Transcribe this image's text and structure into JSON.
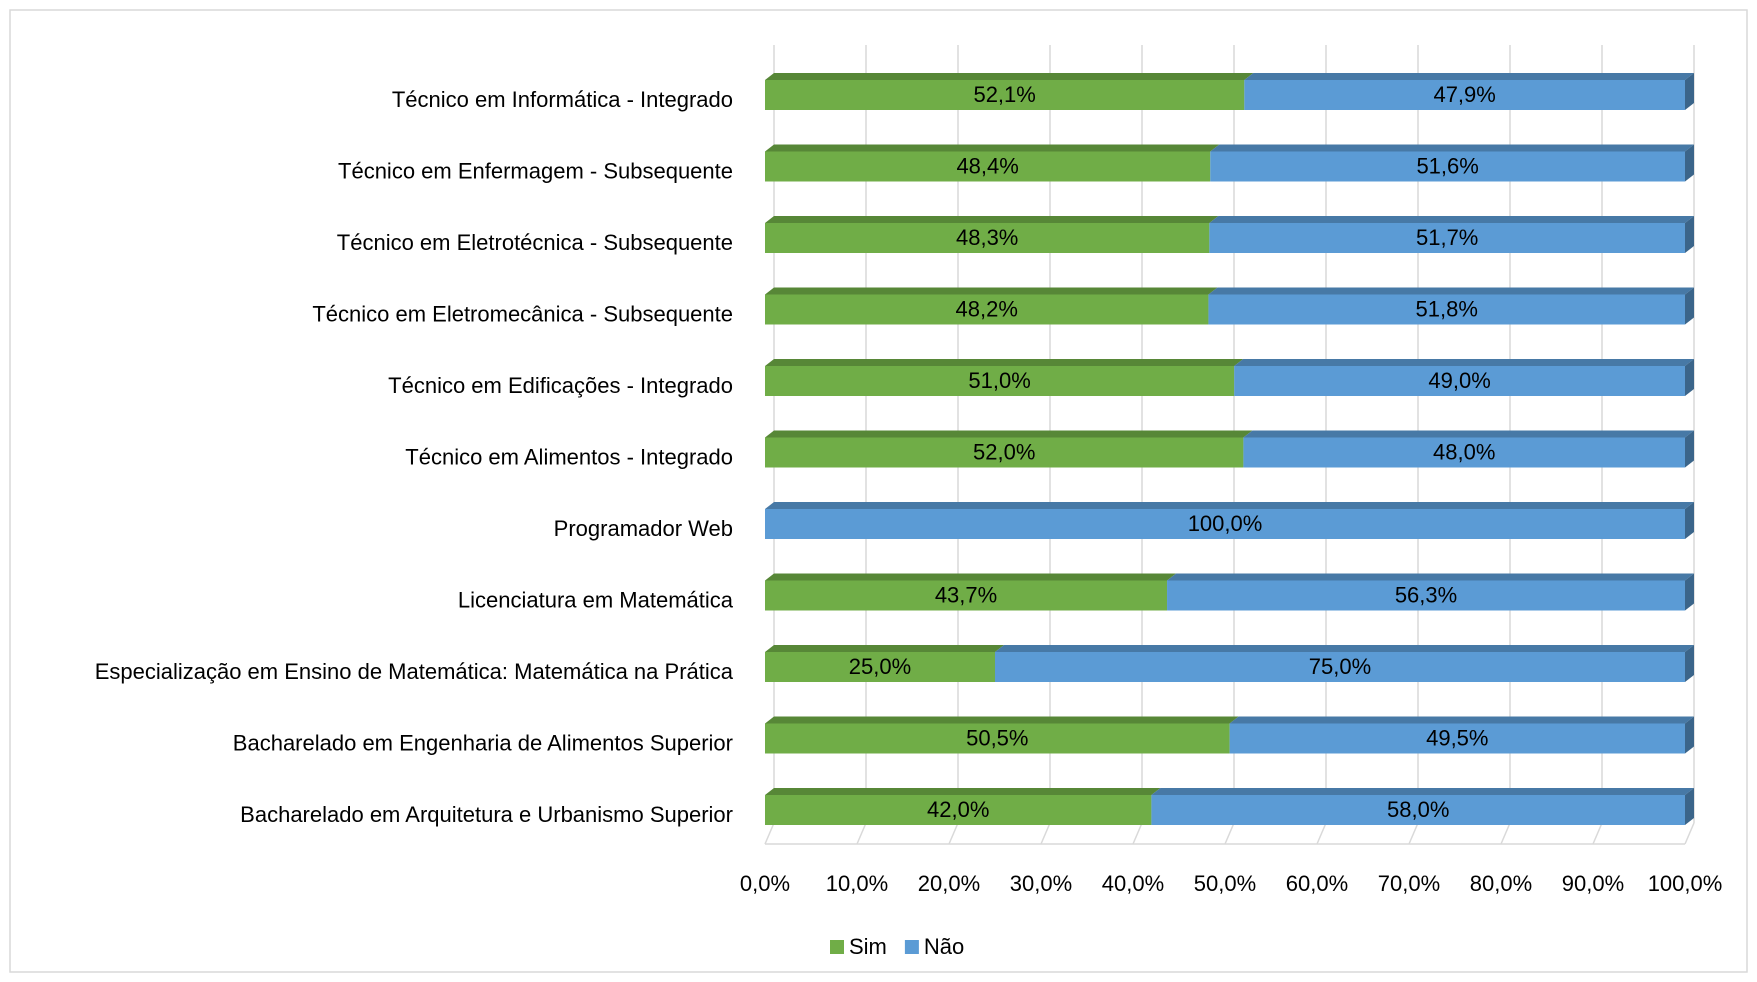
{
  "chart_data": {
    "type": "bar",
    "orientation": "horizontal",
    "stacked": true,
    "three_d": true,
    "categories": [
      "Técnico em Informática - Integrado",
      "Técnico em Enfermagem - Subsequente",
      "Técnico em Eletrotécnica - Subsequente",
      "Técnico em Eletromecânica - Subsequente",
      "Técnico em Edificações - Integrado",
      "Técnico em Alimentos - Integrado",
      "Programador Web",
      "Licenciatura em Matemática",
      "Especialização em Ensino de Matemática: Matemática na Prática",
      "Bacharelado em Engenharia de Alimentos Superior",
      "Bacharelado em Arquitetura e Urbanismo Superior"
    ],
    "series": [
      {
        "name": "Sim",
        "color": "#70ad47",
        "values": [
          52.1,
          48.4,
          48.3,
          48.2,
          51.0,
          52.0,
          0,
          43.7,
          25.0,
          50.5,
          42.0
        ],
        "value_labels": [
          "52,1%",
          "48,4%",
          "48,3%",
          "48,2%",
          "51,0%",
          "52,0%",
          null,
          "43,7%",
          "25,0%",
          "50,5%",
          "42,0%"
        ]
      },
      {
        "name": "Não",
        "color": "#5b9bd5",
        "values": [
          47.9,
          51.6,
          51.7,
          51.8,
          49.0,
          48.0,
          100.0,
          56.3,
          75.0,
          49.5,
          58.0
        ],
        "value_labels": [
          "47,9%",
          "51,6%",
          "51,7%",
          "51,8%",
          "49,0%",
          "48,0%",
          "100,0%",
          "56,3%",
          "75,0%",
          "49,5%",
          "58,0%"
        ]
      }
    ],
    "xlim": [
      0,
      100
    ],
    "xticks": [
      {
        "value": 0,
        "label": "0,0%"
      },
      {
        "value": 10,
        "label": "10,0%"
      },
      {
        "value": 20,
        "label": "20,0%"
      },
      {
        "value": 30,
        "label": "30,0%"
      },
      {
        "value": 40,
        "label": "40,0%"
      },
      {
        "value": 50,
        "label": "50,0%"
      },
      {
        "value": 60,
        "label": "60,0%"
      },
      {
        "value": 70,
        "label": "70,0%"
      },
      {
        "value": 80,
        "label": "80,0%"
      },
      {
        "value": 90,
        "label": "90,0%"
      },
      {
        "value": 100,
        "label": "100,0%"
      }
    ],
    "grid": true,
    "legend": "bottom"
  }
}
